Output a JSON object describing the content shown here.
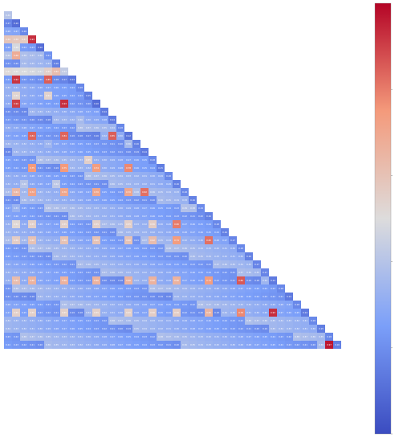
{
  "chart_data": {
    "type": "heatmap",
    "shape": "lower-triangle",
    "size": 42,
    "colormap": "coolwarm",
    "colormap_stops": [
      "#3b4cc0",
      "#dddcdc",
      "#b40426"
    ],
    "value_range": [
      0,
      1
    ],
    "mode": "lower-triangle-including-diagonal",
    "row_labels": [],
    "col_labels": [],
    "colorbar_ticks": [],
    "row_base": [
      0.52,
      0.22,
      0.3,
      0.58,
      0.22,
      0.33,
      0.28,
      0.55,
      0.25,
      0.3,
      0.27,
      0.22,
      0.26,
      0.26,
      0.3,
      0.24,
      0.28,
      0.26,
      0.3,
      0.27,
      0.3,
      0.28,
      0.3,
      0.28,
      0.31,
      0.28,
      0.3,
      0.28,
      0.29,
      0.3,
      0.28,
      0.29,
      0.29,
      0.26,
      0.3,
      0.26,
      0.3,
      0.26,
      0.3,
      0.27,
      0.3,
      0.28
    ],
    "hot_cells": [
      {
        "row": 3,
        "col": 3,
        "v": 0.93
      },
      {
        "row": 3,
        "col": 5,
        "v": 0.38
      },
      {
        "row": 4,
        "col": 1,
        "v": 0.48
      },
      {
        "row": 5,
        "col": 1,
        "v": 0.68
      },
      {
        "row": 5,
        "col": 11,
        "v": 0.62
      },
      {
        "row": 7,
        "col": 5,
        "v": 0.55
      },
      {
        "row": 8,
        "col": 1,
        "v": 0.92
      },
      {
        "row": 8,
        "col": 5,
        "v": 0.85
      },
      {
        "row": 10,
        "col": 1,
        "v": 0.53
      },
      {
        "row": 10,
        "col": 5,
        "v": 0.54
      },
      {
        "row": 11,
        "col": 1,
        "v": 0.9
      },
      {
        "row": 11,
        "col": 7,
        "v": 0.93
      },
      {
        "row": 13,
        "col": 9,
        "v": 0.36
      },
      {
        "row": 15,
        "col": 3,
        "v": 0.84
      },
      {
        "row": 15,
        "col": 7,
        "v": 0.84
      },
      {
        "row": 15,
        "col": 13,
        "v": 0.85
      },
      {
        "row": 16,
        "col": 1,
        "v": 0.33
      },
      {
        "row": 16,
        "col": 5,
        "v": 0.34
      },
      {
        "row": 18,
        "col": 10,
        "v": 0.55
      },
      {
        "row": 19,
        "col": 3,
        "v": 0.75
      },
      {
        "row": 19,
        "col": 7,
        "v": 0.75
      },
      {
        "row": 19,
        "col": 11,
        "v": 0.74
      },
      {
        "row": 19,
        "col": 15,
        "v": 0.78
      },
      {
        "row": 21,
        "col": 2,
        "v": 0.4
      },
      {
        "row": 21,
        "col": 6,
        "v": 0.42
      },
      {
        "row": 22,
        "col": 1,
        "v": 0.64
      },
      {
        "row": 22,
        "col": 3,
        "v": 0.72
      },
      {
        "row": 22,
        "col": 7,
        "v": 0.7
      },
      {
        "row": 22,
        "col": 11,
        "v": 0.7
      },
      {
        "row": 22,
        "col": 15,
        "v": 0.7
      },
      {
        "row": 22,
        "col": 17,
        "v": 0.82
      },
      {
        "row": 24,
        "col": 1,
        "v": 0.33
      },
      {
        "row": 24,
        "col": 9,
        "v": 0.35
      },
      {
        "row": 26,
        "col": 1,
        "v": 0.52
      },
      {
        "row": 26,
        "col": 3,
        "v": 0.55
      },
      {
        "row": 26,
        "col": 7,
        "v": 0.55
      },
      {
        "row": 26,
        "col": 11,
        "v": 0.55
      },
      {
        "row": 26,
        "col": 15,
        "v": 0.55
      },
      {
        "row": 26,
        "col": 18,
        "v": 0.56
      },
      {
        "row": 26,
        "col": 21,
        "v": 0.8
      },
      {
        "row": 28,
        "col": 1,
        "v": 0.56
      },
      {
        "row": 28,
        "col": 3,
        "v": 0.6
      },
      {
        "row": 28,
        "col": 7,
        "v": 0.6
      },
      {
        "row": 28,
        "col": 11,
        "v": 0.6
      },
      {
        "row": 28,
        "col": 15,
        "v": 0.6
      },
      {
        "row": 28,
        "col": 18,
        "v": 0.62
      },
      {
        "row": 28,
        "col": 21,
        "v": 0.74
      },
      {
        "row": 28,
        "col": 25,
        "v": 0.82
      },
      {
        "row": 33,
        "col": 1,
        "v": 0.62
      },
      {
        "row": 33,
        "col": 3,
        "v": 0.66
      },
      {
        "row": 33,
        "col": 7,
        "v": 0.66
      },
      {
        "row": 33,
        "col": 11,
        "v": 0.66
      },
      {
        "row": 33,
        "col": 15,
        "v": 0.66
      },
      {
        "row": 33,
        "col": 18,
        "v": 0.66
      },
      {
        "row": 33,
        "col": 21,
        "v": 0.66
      },
      {
        "row": 33,
        "col": 25,
        "v": 0.74
      },
      {
        "row": 33,
        "col": 29,
        "v": 0.86
      },
      {
        "row": 37,
        "col": 1,
        "v": 0.55
      },
      {
        "row": 37,
        "col": 3,
        "v": 0.55
      },
      {
        "row": 37,
        "col": 7,
        "v": 0.55
      },
      {
        "row": 37,
        "col": 11,
        "v": 0.55
      },
      {
        "row": 37,
        "col": 15,
        "v": 0.55
      },
      {
        "row": 37,
        "col": 18,
        "v": 0.56
      },
      {
        "row": 37,
        "col": 21,
        "v": 0.56
      },
      {
        "row": 37,
        "col": 25,
        "v": 0.65
      },
      {
        "row": 37,
        "col": 29,
        "v": 0.78
      },
      {
        "row": 37,
        "col": 33,
        "v": 0.93
      },
      {
        "row": 41,
        "col": 40,
        "v": 0.97
      }
    ]
  }
}
